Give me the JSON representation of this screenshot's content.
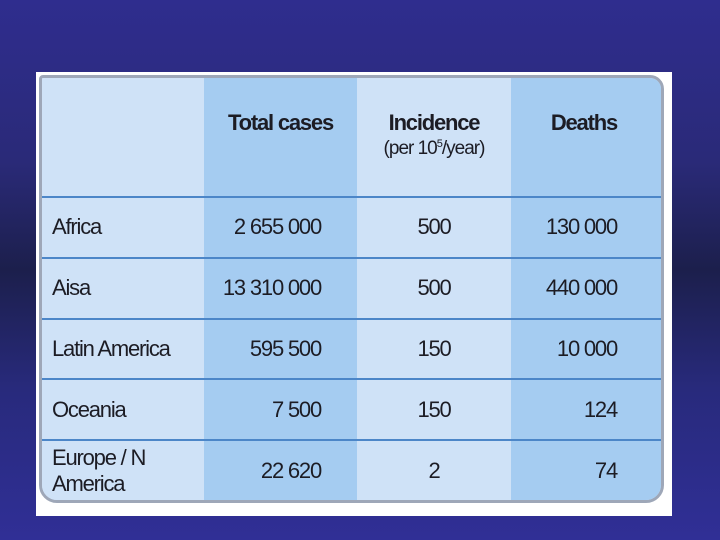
{
  "table": {
    "headers": {
      "region": "",
      "total_cases": "Total cases",
      "incidence": "Incidence",
      "incidence_unit_pre": "(per 10",
      "incidence_unit_sup": "5",
      "incidence_unit_post": "/year)",
      "deaths": "Deaths"
    },
    "rows": [
      {
        "region": "Africa",
        "total_cases": "2 655 000",
        "incidence": "500",
        "deaths": "130 000"
      },
      {
        "region": "Aisa",
        "total_cases": "13 310 000",
        "incidence": "500",
        "deaths": "440 000"
      },
      {
        "region": "Latin America",
        "total_cases": "595 500",
        "incidence": "150",
        "deaths": "10 000"
      },
      {
        "region": "Oceania",
        "total_cases": "7 500",
        "incidence": "150",
        "deaths": "124"
      },
      {
        "region": "Europe / N America",
        "total_cases": "22 620",
        "incidence": "2",
        "deaths": "74"
      }
    ]
  },
  "colors": {
    "background": "#2a2a78",
    "cell_light": "#cfe2f7",
    "cell_dark": "#a5ccf1",
    "row_divider": "#4c86c8"
  }
}
